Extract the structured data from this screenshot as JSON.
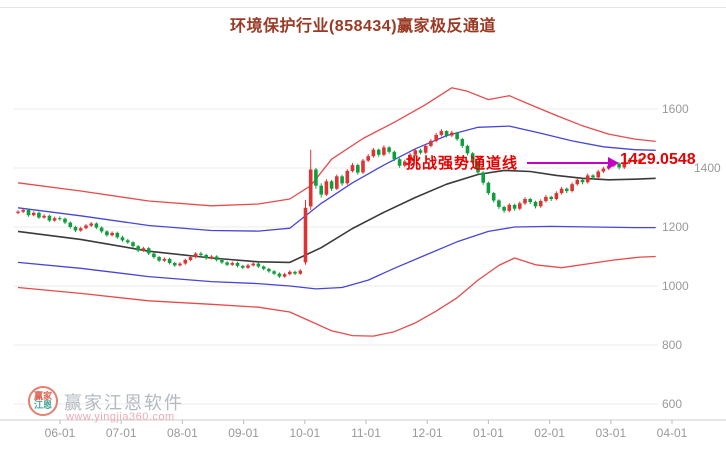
{
  "page": {
    "title": "环境保护行业(858434)赢家极反通道"
  },
  "annotation": {
    "text": "挑战强势通道线",
    "price_label": "1429.0548",
    "text_color": "#e60000",
    "arrow_color": "#c400c4"
  },
  "watermark": {
    "brand": "赢家江恩软件",
    "url": "www.yingjia360.com",
    "logo_text_top": "赢家",
    "logo_text_bottom": "江恩"
  },
  "chart_data": {
    "type": "candlestick",
    "title": "环境保护行业(858434)赢家极反通道",
    "categories": [
      "06-01",
      "07-01",
      "08-01",
      "09-01",
      "10-01",
      "11-01",
      "12-01",
      "01-01",
      "02-01",
      "03-01",
      "04-01"
    ],
    "y_ticks": [
      600,
      800,
      1000,
      1200,
      1400,
      1600
    ],
    "ylim": [
      560,
      1760
    ],
    "grid": "horizontal",
    "legend": "none",
    "last_price": 1429.0548,
    "colors": {
      "up": "#dd3333",
      "down": "#0f9e3c",
      "channel_outer": "#e84a4a",
      "channel_inner": "#4646d8",
      "channel_middle": "#3a3a3a",
      "grid": "#ebebeb",
      "axis_text": "#999999",
      "axis_line": "#cccccc"
    },
    "candles_ohlc": [
      [
        1248,
        1257,
        1243,
        1252
      ],
      [
        1252,
        1263,
        1247,
        1258
      ],
      [
        1258,
        1262,
        1235,
        1240
      ],
      [
        1240,
        1253,
        1236,
        1248
      ],
      [
        1248,
        1252,
        1227,
        1232
      ],
      [
        1232,
        1243,
        1228,
        1238
      ],
      [
        1238,
        1242,
        1217,
        1222
      ],
      [
        1222,
        1235,
        1218,
        1230
      ],
      [
        1230,
        1236,
        1222,
        1228
      ],
      [
        1228,
        1232,
        1210,
        1215
      ],
      [
        1215,
        1219,
        1195,
        1200
      ],
      [
        1200,
        1204,
        1183,
        1188
      ],
      [
        1188,
        1201,
        1184,
        1196
      ],
      [
        1196,
        1210,
        1192,
        1205
      ],
      [
        1205,
        1217,
        1200,
        1212
      ],
      [
        1212,
        1216,
        1193,
        1198
      ],
      [
        1198,
        1202,
        1180,
        1185
      ],
      [
        1185,
        1189,
        1167,
        1172
      ],
      [
        1172,
        1185,
        1168,
        1180
      ],
      [
        1180,
        1184,
        1160,
        1165
      ],
      [
        1165,
        1170,
        1150,
        1155
      ],
      [
        1155,
        1160,
        1143,
        1148
      ],
      [
        1148,
        1152,
        1130,
        1135
      ],
      [
        1135,
        1139,
        1115,
        1120
      ],
      [
        1120,
        1133,
        1116,
        1128
      ],
      [
        1128,
        1132,
        1105,
        1110
      ],
      [
        1110,
        1114,
        1093,
        1098
      ],
      [
        1098,
        1102,
        1081,
        1086
      ],
      [
        1086,
        1097,
        1082,
        1092
      ],
      [
        1092,
        1096,
        1073,
        1078
      ],
      [
        1078,
        1082,
        1065,
        1070
      ],
      [
        1070,
        1081,
        1066,
        1076
      ],
      [
        1076,
        1093,
        1072,
        1088
      ],
      [
        1088,
        1103,
        1084,
        1098
      ],
      [
        1098,
        1115,
        1094,
        1110
      ],
      [
        1110,
        1116,
        1100,
        1105
      ],
      [
        1105,
        1109,
        1089,
        1094
      ],
      [
        1094,
        1105,
        1090,
        1100
      ],
      [
        1100,
        1104,
        1083,
        1088
      ],
      [
        1088,
        1092,
        1075,
        1080
      ],
      [
        1080,
        1084,
        1067,
        1072
      ],
      [
        1072,
        1083,
        1068,
        1078
      ],
      [
        1078,
        1082,
        1063,
        1068
      ],
      [
        1068,
        1072,
        1057,
        1062
      ],
      [
        1062,
        1075,
        1058,
        1070
      ],
      [
        1070,
        1081,
        1066,
        1076
      ],
      [
        1076,
        1080,
        1061,
        1066
      ],
      [
        1066,
        1070,
        1053,
        1058
      ],
      [
        1058,
        1062,
        1045,
        1050
      ],
      [
        1050,
        1054,
        1037,
        1042
      ],
      [
        1042,
        1046,
        1027,
        1032
      ],
      [
        1032,
        1045,
        1028,
        1040
      ],
      [
        1040,
        1053,
        1036,
        1048
      ],
      [
        1048,
        1052,
        1037,
        1042
      ],
      [
        1042,
        1057,
        1038,
        1052
      ],
      [
        1080,
        1292,
        1072,
        1265
      ],
      [
        1270,
        1462,
        1258,
        1395
      ],
      [
        1395,
        1400,
        1330,
        1340
      ],
      [
        1340,
        1348,
        1300,
        1310
      ],
      [
        1310,
        1362,
        1305,
        1355
      ],
      [
        1355,
        1360,
        1322,
        1330
      ],
      [
        1330,
        1378,
        1325,
        1372
      ],
      [
        1372,
        1377,
        1340,
        1348
      ],
      [
        1348,
        1396,
        1343,
        1390
      ],
      [
        1390,
        1417,
        1385,
        1410
      ],
      [
        1410,
        1415,
        1378,
        1385
      ],
      [
        1385,
        1431,
        1380,
        1425
      ],
      [
        1425,
        1447,
        1420,
        1440
      ],
      [
        1440,
        1468,
        1435,
        1462
      ],
      [
        1462,
        1466,
        1438,
        1445
      ],
      [
        1445,
        1477,
        1440,
        1470
      ],
      [
        1470,
        1474,
        1448,
        1455
      ],
      [
        1455,
        1459,
        1423,
        1430
      ],
      [
        1430,
        1434,
        1401,
        1408
      ],
      [
        1408,
        1428,
        1403,
        1422
      ],
      [
        1422,
        1451,
        1417,
        1445
      ],
      [
        1445,
        1466,
        1440,
        1460
      ],
      [
        1460,
        1465,
        1446,
        1452
      ],
      [
        1452,
        1481,
        1447,
        1475
      ],
      [
        1475,
        1498,
        1470,
        1492
      ],
      [
        1492,
        1519,
        1487,
        1512
      ],
      [
        1512,
        1532,
        1507,
        1525
      ],
      [
        1525,
        1528,
        1503,
        1510
      ],
      [
        1510,
        1526,
        1505,
        1520
      ],
      [
        1520,
        1523,
        1492,
        1498
      ],
      [
        1498,
        1502,
        1468,
        1475
      ],
      [
        1475,
        1479,
        1443,
        1450
      ],
      [
        1450,
        1454,
        1413,
        1420
      ],
      [
        1420,
        1424,
        1378,
        1385
      ],
      [
        1385,
        1389,
        1343,
        1350
      ],
      [
        1350,
        1354,
        1308,
        1315
      ],
      [
        1315,
        1319,
        1283,
        1290
      ],
      [
        1290,
        1294,
        1261,
        1268
      ],
      [
        1268,
        1272,
        1248,
        1255
      ],
      [
        1255,
        1281,
        1250,
        1275
      ],
      [
        1275,
        1279,
        1255,
        1262
      ],
      [
        1262,
        1286,
        1257,
        1280
      ],
      [
        1280,
        1301,
        1275,
        1295
      ],
      [
        1295,
        1299,
        1278,
        1285
      ],
      [
        1285,
        1289,
        1263,
        1270
      ],
      [
        1270,
        1294,
        1265,
        1288
      ],
      [
        1288,
        1308,
        1283,
        1302
      ],
      [
        1302,
        1306,
        1288,
        1295
      ],
      [
        1295,
        1321,
        1290,
        1315
      ],
      [
        1315,
        1336,
        1310,
        1330
      ],
      [
        1330,
        1334,
        1315,
        1322
      ],
      [
        1322,
        1351,
        1317,
        1345
      ],
      [
        1345,
        1366,
        1340,
        1360
      ],
      [
        1360,
        1364,
        1345,
        1352
      ],
      [
        1352,
        1381,
        1347,
        1375
      ],
      [
        1375,
        1379,
        1361,
        1368
      ],
      [
        1368,
        1394,
        1363,
        1388
      ],
      [
        1388,
        1404,
        1383,
        1398
      ],
      [
        1398,
        1414,
        1393,
        1408
      ],
      [
        1408,
        1421,
        1403,
        1415
      ],
      [
        1415,
        1419,
        1395,
        1402
      ],
      [
        1402,
        1424,
        1397,
        1418
      ],
      [
        1418,
        1434,
        1413,
        1428
      ],
      [
        1428,
        1432,
        1413,
        1420
      ],
      [
        1420,
        1435,
        1415,
        1429.05
      ]
    ],
    "channel_lines": {
      "upper_outer": {
        "style": "channel_outer",
        "points": [
          [
            0,
            1350
          ],
          [
            12,
            1322
          ],
          [
            25,
            1288
          ],
          [
            37,
            1272
          ],
          [
            46,
            1278
          ],
          [
            52,
            1295
          ],
          [
            56,
            1340
          ],
          [
            60,
            1430
          ],
          [
            66,
            1500
          ],
          [
            72,
            1555
          ],
          [
            78,
            1615
          ],
          [
            83,
            1672
          ],
          [
            86,
            1660
          ],
          [
            90,
            1632
          ],
          [
            94,
            1645
          ],
          [
            98,
            1615
          ],
          [
            103,
            1578
          ],
          [
            108,
            1543
          ],
          [
            113,
            1515
          ],
          [
            118,
            1498
          ],
          [
            122,
            1490
          ]
        ]
      },
      "upper_inner": {
        "style": "channel_inner",
        "points": [
          [
            0,
            1265
          ],
          [
            12,
            1238
          ],
          [
            25,
            1205
          ],
          [
            37,
            1188
          ],
          [
            46,
            1186
          ],
          [
            52,
            1196
          ],
          [
            58,
            1280
          ],
          [
            64,
            1350
          ],
          [
            70,
            1410
          ],
          [
            76,
            1465
          ],
          [
            82,
            1510
          ],
          [
            88,
            1538
          ],
          [
            94,
            1542
          ],
          [
            100,
            1518
          ],
          [
            106,
            1492
          ],
          [
            112,
            1472
          ],
          [
            118,
            1462
          ],
          [
            122,
            1460
          ]
        ]
      },
      "middle": {
        "style": "channel_middle",
        "points": [
          [
            0,
            1185
          ],
          [
            12,
            1158
          ],
          [
            25,
            1118
          ],
          [
            37,
            1095
          ],
          [
            46,
            1082
          ],
          [
            52,
            1080
          ],
          [
            58,
            1130
          ],
          [
            64,
            1195
          ],
          [
            70,
            1250
          ],
          [
            76,
            1300
          ],
          [
            82,
            1345
          ],
          [
            88,
            1378
          ],
          [
            93,
            1392
          ],
          [
            98,
            1388
          ],
          [
            103,
            1375
          ],
          [
            108,
            1365
          ],
          [
            113,
            1360
          ],
          [
            118,
            1362
          ],
          [
            122,
            1365
          ]
        ]
      },
      "lower_inner": {
        "style": "channel_inner",
        "points": [
          [
            0,
            1080
          ],
          [
            12,
            1060
          ],
          [
            25,
            1032
          ],
          [
            37,
            1015
          ],
          [
            46,
            1008
          ],
          [
            52,
            1000
          ],
          [
            57,
            990
          ],
          [
            62,
            995
          ],
          [
            67,
            1020
          ],
          [
            72,
            1060
          ],
          [
            78,
            1105
          ],
          [
            84,
            1150
          ],
          [
            90,
            1185
          ],
          [
            95,
            1200
          ],
          [
            102,
            1202
          ],
          [
            110,
            1200
          ],
          [
            118,
            1198
          ],
          [
            122,
            1198
          ]
        ]
      },
      "lower_outer": {
        "style": "channel_outer",
        "points": [
          [
            0,
            995
          ],
          [
            12,
            975
          ],
          [
            25,
            950
          ],
          [
            37,
            938
          ],
          [
            46,
            928
          ],
          [
            52,
            912
          ],
          [
            56,
            880
          ],
          [
            60,
            848
          ],
          [
            64,
            832
          ],
          [
            68,
            830
          ],
          [
            72,
            845
          ],
          [
            76,
            875
          ],
          [
            80,
            915
          ],
          [
            84,
            960
          ],
          [
            88,
            1020
          ],
          [
            92,
            1070
          ],
          [
            95,
            1095
          ],
          [
            99,
            1072
          ],
          [
            104,
            1062
          ],
          [
            109,
            1075
          ],
          [
            114,
            1088
          ],
          [
            119,
            1098
          ],
          [
            122,
            1100
          ]
        ]
      }
    }
  }
}
